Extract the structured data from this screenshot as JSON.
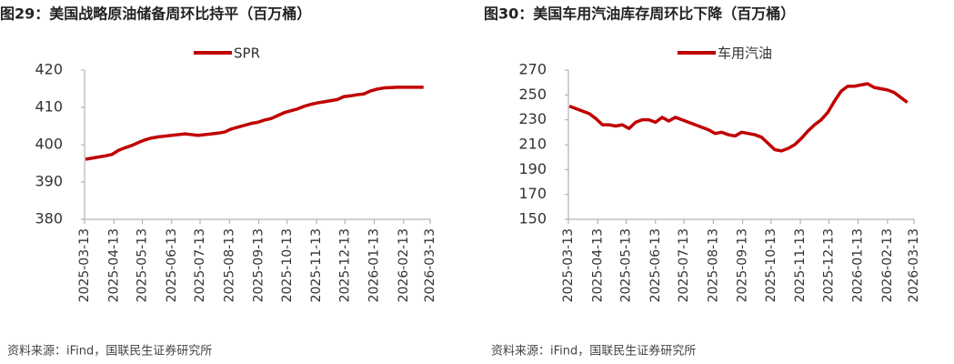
{
  "chart_data": [
    {
      "type": "line",
      "title": "图29：美国战略原油储备周环比持平（百万桶）",
      "source": "资料来源：iFind，国联民生证券研究所",
      "x": [
        "2025-03-14",
        "2025-03-21",
        "2025-03-28",
        "2025-04-04",
        "2025-04-11",
        "2025-04-18",
        "2025-04-25",
        "2025-05-02",
        "2025-05-09",
        "2025-05-16",
        "2025-05-23",
        "2025-05-30",
        "2025-06-06",
        "2025-06-13",
        "2025-06-20",
        "2025-06-27",
        "2025-07-04",
        "2025-07-11",
        "2025-07-18",
        "2025-07-25",
        "2025-08-01",
        "2025-08-08",
        "2025-08-15",
        "2025-08-22",
        "2025-08-29",
        "2025-09-05",
        "2025-09-12",
        "2025-09-19",
        "2025-09-26",
        "2025-10-03",
        "2025-10-10",
        "2025-10-17",
        "2025-10-24",
        "2025-10-31",
        "2025-11-07",
        "2025-11-14",
        "2025-11-21",
        "2025-11-28",
        "2025-12-05",
        "2025-12-12",
        "2025-12-19",
        "2025-12-26",
        "2026-01-02",
        "2026-01-09",
        "2026-01-16",
        "2026-01-23",
        "2026-01-30",
        "2026-02-06",
        "2026-02-13",
        "2026-02-20",
        "2026-02-27",
        "2026-03-06"
      ],
      "series": [
        {
          "name": "SPR",
          "color": "#c00000",
          "values": [
            396.1,
            396.4,
            396.7,
            397.0,
            397.4,
            398.5,
            399.2,
            399.8,
            400.6,
            401.3,
            401.8,
            402.1,
            402.3,
            402.5,
            402.7,
            402.9,
            402.7,
            402.5,
            402.7,
            402.9,
            403.1,
            403.4,
            404.2,
            404.7,
            405.2,
            405.7,
            406.0,
            406.6,
            407.0,
            407.8,
            408.6,
            409.1,
            409.6,
            410.3,
            410.8,
            411.2,
            411.5,
            411.8,
            412.1,
            412.9,
            413.1,
            413.4,
            413.6,
            414.4,
            414.9,
            415.2,
            415.3,
            415.4,
            415.4,
            415.4,
            415.4,
            415.4
          ]
        }
      ],
      "xlim": [
        "2025-03-13",
        "2026-03-13"
      ],
      "xticks": [
        "2025-03-13",
        "2025-04-13",
        "2025-05-13",
        "2025-06-13",
        "2025-07-13",
        "2025-08-13",
        "2025-09-13",
        "2025-10-13",
        "2025-11-13",
        "2025-12-13",
        "2026-01-13",
        "2026-02-13",
        "2026-03-13"
      ],
      "ylim": [
        380,
        420
      ],
      "yticks": [
        380,
        390,
        400,
        410,
        420
      ],
      "legend": "top",
      "grid": false
    },
    {
      "type": "line",
      "title": "图30：美国车用汽油库存周环比下降（百万桶）",
      "source": "资料来源：iFind，国联民生证券研究所",
      "x": [
        "2025-03-14",
        "2025-03-21",
        "2025-03-28",
        "2025-04-04",
        "2025-04-11",
        "2025-04-18",
        "2025-04-25",
        "2025-05-02",
        "2025-05-09",
        "2025-05-16",
        "2025-05-23",
        "2025-05-30",
        "2025-06-06",
        "2025-06-13",
        "2025-06-20",
        "2025-06-27",
        "2025-07-04",
        "2025-07-11",
        "2025-07-18",
        "2025-07-25",
        "2025-08-01",
        "2025-08-08",
        "2025-08-15",
        "2025-08-22",
        "2025-08-29",
        "2025-09-05",
        "2025-09-12",
        "2025-09-19",
        "2025-09-26",
        "2025-10-03",
        "2025-10-10",
        "2025-10-17",
        "2025-10-24",
        "2025-10-31",
        "2025-11-07",
        "2025-11-14",
        "2025-11-21",
        "2025-11-28",
        "2025-12-05",
        "2025-12-12",
        "2025-12-19",
        "2025-12-26",
        "2026-01-02",
        "2026-01-09",
        "2026-01-16",
        "2026-01-23",
        "2026-01-30",
        "2026-02-06",
        "2026-02-13",
        "2026-02-20",
        "2026-02-27",
        "2026-03-06"
      ],
      "series": [
        {
          "name": "车用汽油",
          "color": "#c00000",
          "values": [
            241,
            239,
            237,
            235,
            231,
            226,
            226,
            225,
            226,
            223,
            228,
            230,
            230,
            228,
            232,
            229,
            232,
            230,
            228,
            226,
            224,
            222,
            219,
            220,
            218,
            217,
            220,
            219,
            218,
            216,
            211,
            206,
            205,
            207,
            210,
            215,
            221,
            226,
            230,
            236,
            245,
            253,
            257,
            257,
            258,
            259,
            256,
            255,
            254,
            252,
            248,
            244
          ]
        }
      ],
      "xlim": [
        "2025-03-13",
        "2026-03-13"
      ],
      "xticks": [
        "2025-03-13",
        "2025-04-13",
        "2025-05-13",
        "2025-06-13",
        "2025-07-13",
        "2025-08-13",
        "2025-09-13",
        "2025-10-13",
        "2025-11-13",
        "2025-12-13",
        "2026-01-13",
        "2026-02-13",
        "2026-03-13"
      ],
      "ylim": [
        150,
        270
      ],
      "yticks": [
        150,
        170,
        190,
        210,
        230,
        250,
        270
      ],
      "legend": "top",
      "grid": false
    }
  ]
}
